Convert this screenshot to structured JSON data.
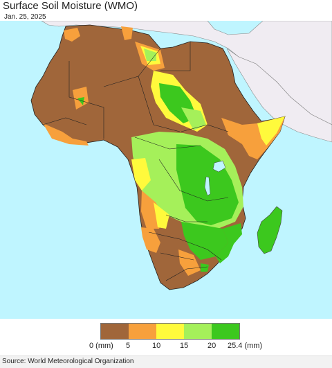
{
  "title": "Surface Soil Moisture (WMO)",
  "date": "Jan. 25, 2025",
  "legend": {
    "colors": [
      "#a0663a",
      "#f7a03c",
      "#fffa3c",
      "#a5f05a",
      "#3cc81e"
    ],
    "labels": [
      "0 (mm)",
      "5",
      "10",
      "15",
      "20",
      "25.4 (mm)"
    ]
  },
  "source": "Source: World Meteorological Organization",
  "map": {
    "ocean_color": "#bff5ff",
    "no_data_color": "#f0ecf2",
    "land_dry_color": "#a0663a"
  }
}
